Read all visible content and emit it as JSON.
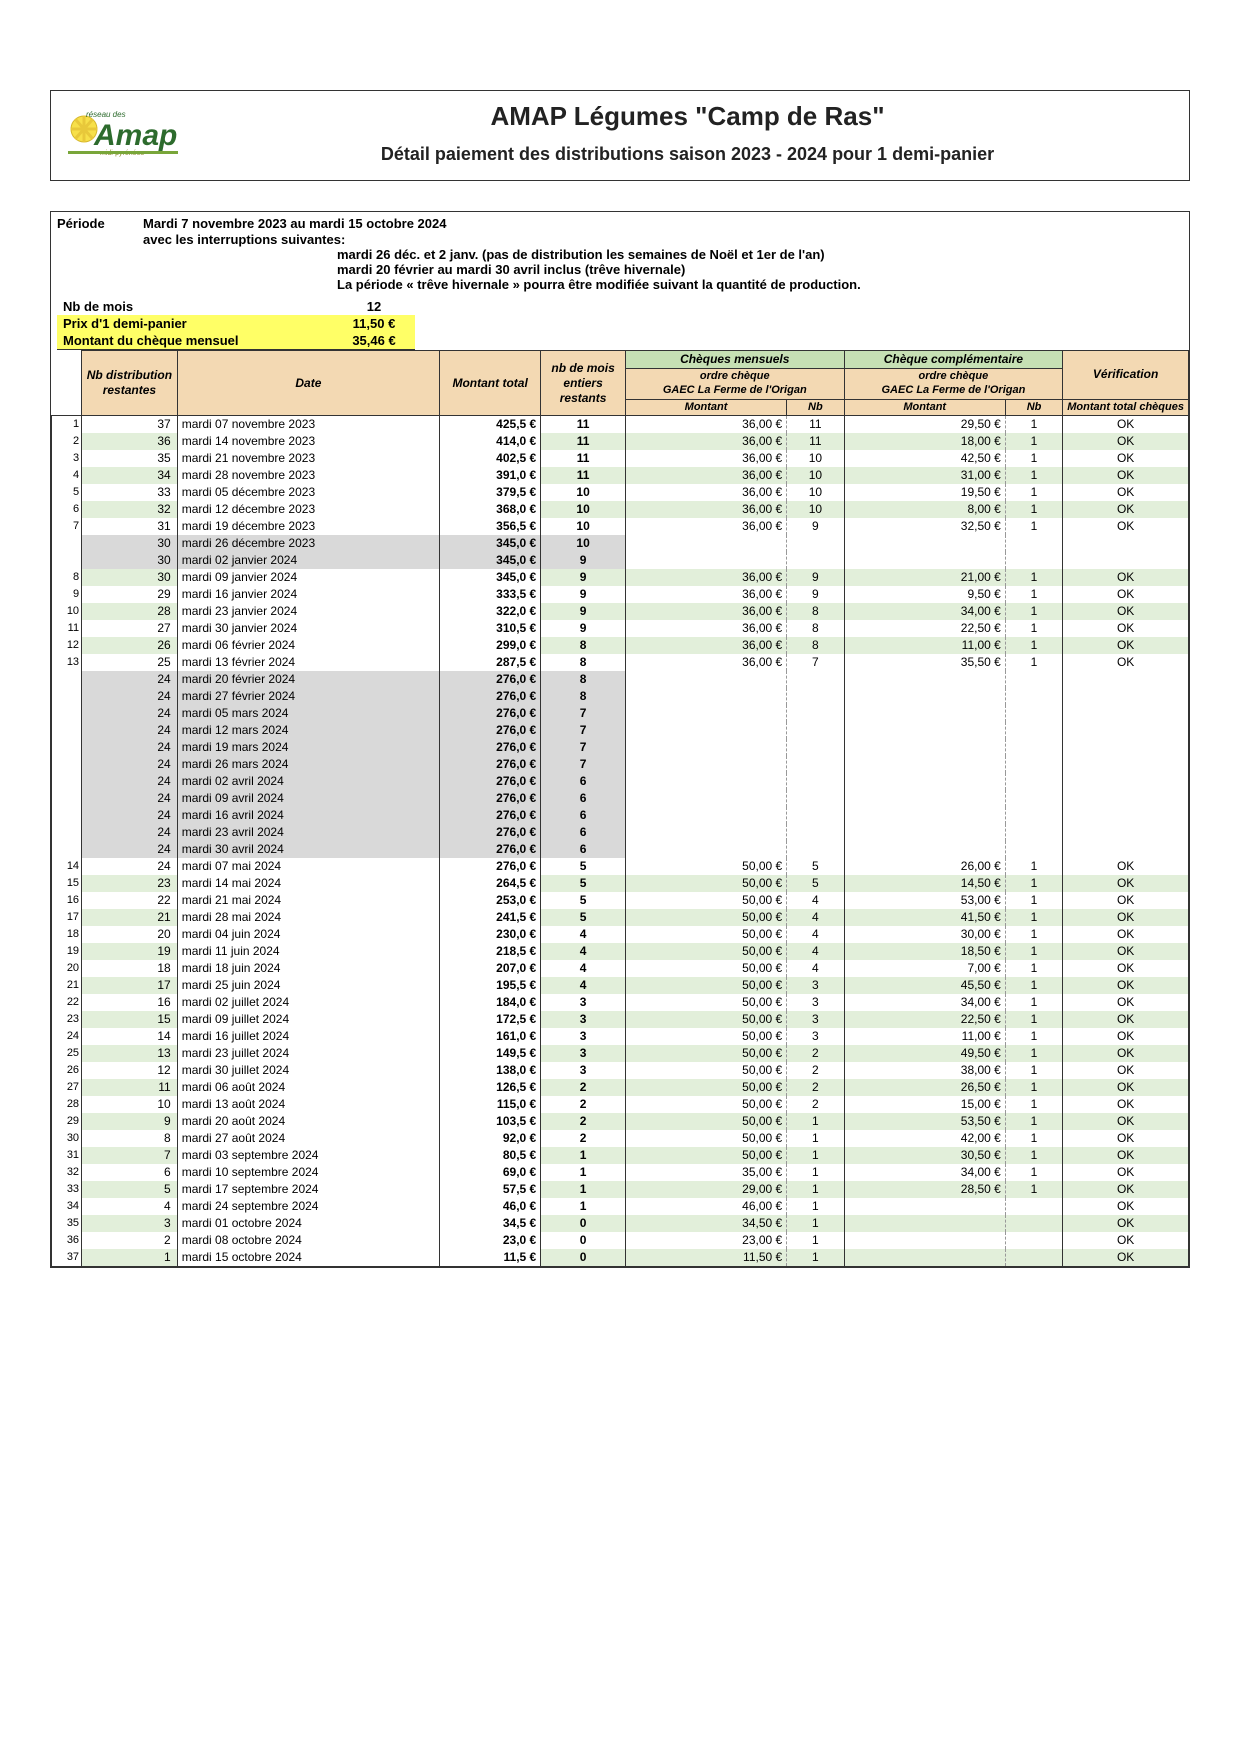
{
  "colors": {
    "header_tan": "#f3d9b3",
    "header_green": "#c6e0b4",
    "row_green": "#e2efda",
    "row_grey": "#d9d9d9",
    "highlight_yellow": "#ffff66",
    "border": "#333333",
    "text": "#222222"
  },
  "typography": {
    "title_fontsize": 26,
    "subtitle_fontsize": 18,
    "body_fontsize": 13,
    "table_fontsize": 12
  },
  "header": {
    "title": "AMAP Légumes \"Camp de Ras\"",
    "subtitle": "Détail paiement des distributions saison 2023 - 2024 pour 1 demi-panier"
  },
  "period": {
    "label": "Période",
    "value": "Mardi 7 novembre 2023 au mardi 15 octobre 2024",
    "interrupt_label": "avec les interruptions suivantes:",
    "interruptions": [
      "mardi 26 déc. et 2 janv. (pas de distribution les semaines de Noël et 1er de l'an)",
      "mardi 20 février au mardi 30 avril inclus (trêve hivernale)",
      "La période « trêve hivernale » pourra être modifiée suivant la quantité de production."
    ]
  },
  "params": {
    "months_label": "Nb de mois",
    "months_value": "12",
    "price_label": "Prix d'1 demi-panier",
    "price_value": "11,50 €",
    "monthly_label": "Montant du chèque mensuel",
    "monthly_value": "35,46 €"
  },
  "table": {
    "headers": {
      "nb_dist": "Nb distribution restantes",
      "date": "Date",
      "montant_total": "Montant total",
      "nb_mois": "nb de mois entiers restants",
      "cheques_mensuels": "Chèques mensuels",
      "cheque_compl": "Chèque complémentaire",
      "verification": "Vérification",
      "ordre": "ordre chèque\nGAEC La Ferme de l'Origan",
      "montant": "Montant",
      "nb": "Nb",
      "montant_total_cheques": "Montant total chèques"
    },
    "rows": [
      {
        "idx": 1,
        "nb": 37,
        "date": "mardi 07 novembre 2023",
        "mt": "425,5 €",
        "nbm": "11",
        "cm_m": "36,00 €",
        "cm_n": "11",
        "cc_m": "29,50 €",
        "cc_n": "1",
        "ver": "OK",
        "green": false
      },
      {
        "idx": 2,
        "nb": 36,
        "date": "mardi 14 novembre 2023",
        "mt": "414,0 €",
        "nbm": "11",
        "cm_m": "36,00 €",
        "cm_n": "11",
        "cc_m": "18,00 €",
        "cc_n": "1",
        "ver": "OK",
        "green": true
      },
      {
        "idx": 3,
        "nb": 35,
        "date": "mardi 21 novembre 2023",
        "mt": "402,5 €",
        "nbm": "11",
        "cm_m": "36,00 €",
        "cm_n": "10",
        "cc_m": "42,50 €",
        "cc_n": "1",
        "ver": "OK",
        "green": false
      },
      {
        "idx": 4,
        "nb": 34,
        "date": "mardi 28 novembre 2023",
        "mt": "391,0 €",
        "nbm": "11",
        "cm_m": "36,00 €",
        "cm_n": "10",
        "cc_m": "31,00 €",
        "cc_n": "1",
        "ver": "OK",
        "green": true
      },
      {
        "idx": 5,
        "nb": 33,
        "date": "mardi 05 décembre 2023",
        "mt": "379,5 €",
        "nbm": "10",
        "cm_m": "36,00 €",
        "cm_n": "10",
        "cc_m": "19,50 €",
        "cc_n": "1",
        "ver": "OK",
        "green": false
      },
      {
        "idx": 6,
        "nb": 32,
        "date": "mardi 12 décembre 2023",
        "mt": "368,0 €",
        "nbm": "10",
        "cm_m": "36,00 €",
        "cm_n": "10",
        "cc_m": "8,00 €",
        "cc_n": "1",
        "ver": "OK",
        "green": true
      },
      {
        "idx": 7,
        "nb": 31,
        "date": "mardi 19 décembre 2023",
        "mt": "356,5 €",
        "nbm": "10",
        "cm_m": "36,00 €",
        "cm_n": "9",
        "cc_m": "32,50 €",
        "cc_n": "1",
        "ver": "OK",
        "green": false
      },
      {
        "idx": "",
        "nb": 30,
        "date": "mardi 26 décembre 2023",
        "mt": "345,0 €",
        "nbm": "10",
        "cm_m": "",
        "cm_n": "",
        "cc_m": "",
        "cc_n": "",
        "ver": "",
        "grey": true
      },
      {
        "idx": "",
        "nb": 30,
        "date": "mardi 02 janvier 2024",
        "mt": "345,0 €",
        "nbm": "9",
        "cm_m": "",
        "cm_n": "",
        "cc_m": "",
        "cc_n": "",
        "ver": "",
        "grey": true
      },
      {
        "idx": 8,
        "nb": 30,
        "date": "mardi 09 janvier 2024",
        "mt": "345,0 €",
        "nbm": "9",
        "cm_m": "36,00 €",
        "cm_n": "9",
        "cc_m": "21,00 €",
        "cc_n": "1",
        "ver": "OK",
        "green": true
      },
      {
        "idx": 9,
        "nb": 29,
        "date": "mardi 16 janvier 2024",
        "mt": "333,5 €",
        "nbm": "9",
        "cm_m": "36,00 €",
        "cm_n": "9",
        "cc_m": "9,50 €",
        "cc_n": "1",
        "ver": "OK",
        "green": false
      },
      {
        "idx": 10,
        "nb": 28,
        "date": "mardi 23 janvier 2024",
        "mt": "322,0 €",
        "nbm": "9",
        "cm_m": "36,00 €",
        "cm_n": "8",
        "cc_m": "34,00 €",
        "cc_n": "1",
        "ver": "OK",
        "green": true
      },
      {
        "idx": 11,
        "nb": 27,
        "date": "mardi 30 janvier 2024",
        "mt": "310,5 €",
        "nbm": "9",
        "cm_m": "36,00 €",
        "cm_n": "8",
        "cc_m": "22,50 €",
        "cc_n": "1",
        "ver": "OK",
        "green": false
      },
      {
        "idx": 12,
        "nb": 26,
        "date": "mardi 06 février 2024",
        "mt": "299,0 €",
        "nbm": "8",
        "cm_m": "36,00 €",
        "cm_n": "8",
        "cc_m": "11,00 €",
        "cc_n": "1",
        "ver": "OK",
        "green": true
      },
      {
        "idx": 13,
        "nb": 25,
        "date": "mardi 13 février 2024",
        "mt": "287,5 €",
        "nbm": "8",
        "cm_m": "36,00 €",
        "cm_n": "7",
        "cc_m": "35,50 €",
        "cc_n": "1",
        "ver": "OK",
        "green": false
      },
      {
        "idx": "",
        "nb": 24,
        "date": "mardi 20 février 2024",
        "mt": "276,0 €",
        "nbm": "8",
        "cm_m": "",
        "cm_n": "",
        "cc_m": "",
        "cc_n": "",
        "ver": "",
        "grey": true
      },
      {
        "idx": "",
        "nb": 24,
        "date": "mardi 27 février 2024",
        "mt": "276,0 €",
        "nbm": "8",
        "cm_m": "",
        "cm_n": "",
        "cc_m": "",
        "cc_n": "",
        "ver": "",
        "grey": true
      },
      {
        "idx": "",
        "nb": 24,
        "date": "mardi 05 mars 2024",
        "mt": "276,0 €",
        "nbm": "7",
        "cm_m": "",
        "cm_n": "",
        "cc_m": "",
        "cc_n": "",
        "ver": "",
        "grey": true
      },
      {
        "idx": "",
        "nb": 24,
        "date": "mardi 12 mars 2024",
        "mt": "276,0 €",
        "nbm": "7",
        "cm_m": "",
        "cm_n": "",
        "cc_m": "",
        "cc_n": "",
        "ver": "",
        "grey": true
      },
      {
        "idx": "",
        "nb": 24,
        "date": "mardi 19 mars 2024",
        "mt": "276,0 €",
        "nbm": "7",
        "cm_m": "",
        "cm_n": "",
        "cc_m": "",
        "cc_n": "",
        "ver": "",
        "grey": true
      },
      {
        "idx": "",
        "nb": 24,
        "date": "mardi 26 mars 2024",
        "mt": "276,0 €",
        "nbm": "7",
        "cm_m": "",
        "cm_n": "",
        "cc_m": "",
        "cc_n": "",
        "ver": "",
        "grey": true
      },
      {
        "idx": "",
        "nb": 24,
        "date": "mardi 02 avril 2024",
        "mt": "276,0 €",
        "nbm": "6",
        "cm_m": "",
        "cm_n": "",
        "cc_m": "",
        "cc_n": "",
        "ver": "",
        "grey": true
      },
      {
        "idx": "",
        "nb": 24,
        "date": "mardi 09 avril 2024",
        "mt": "276,0 €",
        "nbm": "6",
        "cm_m": "",
        "cm_n": "",
        "cc_m": "",
        "cc_n": "",
        "ver": "",
        "grey": true
      },
      {
        "idx": "",
        "nb": 24,
        "date": "mardi 16 avril 2024",
        "mt": "276,0 €",
        "nbm": "6",
        "cm_m": "",
        "cm_n": "",
        "cc_m": "",
        "cc_n": "",
        "ver": "",
        "grey": true
      },
      {
        "idx": "",
        "nb": 24,
        "date": "mardi 23 avril 2024",
        "mt": "276,0 €",
        "nbm": "6",
        "cm_m": "",
        "cm_n": "",
        "cc_m": "",
        "cc_n": "",
        "ver": "",
        "grey": true
      },
      {
        "idx": "",
        "nb": 24,
        "date": "mardi 30 avril 2024",
        "mt": "276,0 €",
        "nbm": "6",
        "cm_m": "",
        "cm_n": "",
        "cc_m": "",
        "cc_n": "",
        "ver": "",
        "grey": true
      },
      {
        "idx": 14,
        "nb": 24,
        "date": "mardi 07 mai 2024",
        "mt": "276,0 €",
        "nbm": "5",
        "cm_m": "50,00 €",
        "cm_n": "5",
        "cc_m": "26,00 €",
        "cc_n": "1",
        "ver": "OK",
        "green": false
      },
      {
        "idx": 15,
        "nb": 23,
        "date": "mardi 14 mai 2024",
        "mt": "264,5 €",
        "nbm": "5",
        "cm_m": "50,00 €",
        "cm_n": "5",
        "cc_m": "14,50 €",
        "cc_n": "1",
        "ver": "OK",
        "green": true
      },
      {
        "idx": 16,
        "nb": 22,
        "date": "mardi 21 mai 2024",
        "mt": "253,0 €",
        "nbm": "5",
        "cm_m": "50,00 €",
        "cm_n": "4",
        "cc_m": "53,00 €",
        "cc_n": "1",
        "ver": "OK",
        "green": false
      },
      {
        "idx": 17,
        "nb": 21,
        "date": "mardi 28 mai 2024",
        "mt": "241,5 €",
        "nbm": "5",
        "cm_m": "50,00 €",
        "cm_n": "4",
        "cc_m": "41,50 €",
        "cc_n": "1",
        "ver": "OK",
        "green": true
      },
      {
        "idx": 18,
        "nb": 20,
        "date": "mardi 04 juin 2024",
        "mt": "230,0 €",
        "nbm": "4",
        "cm_m": "50,00 €",
        "cm_n": "4",
        "cc_m": "30,00 €",
        "cc_n": "1",
        "ver": "OK",
        "green": false
      },
      {
        "idx": 19,
        "nb": 19,
        "date": "mardi 11 juin 2024",
        "mt": "218,5 €",
        "nbm": "4",
        "cm_m": "50,00 €",
        "cm_n": "4",
        "cc_m": "18,50 €",
        "cc_n": "1",
        "ver": "OK",
        "green": true
      },
      {
        "idx": 20,
        "nb": 18,
        "date": "mardi 18 juin 2024",
        "mt": "207,0 €",
        "nbm": "4",
        "cm_m": "50,00 €",
        "cm_n": "4",
        "cc_m": "7,00 €",
        "cc_n": "1",
        "ver": "OK",
        "green": false
      },
      {
        "idx": 21,
        "nb": 17,
        "date": "mardi 25 juin 2024",
        "mt": "195,5 €",
        "nbm": "4",
        "cm_m": "50,00 €",
        "cm_n": "3",
        "cc_m": "45,50 €",
        "cc_n": "1",
        "ver": "OK",
        "green": true
      },
      {
        "idx": 22,
        "nb": 16,
        "date": "mardi 02 juillet 2024",
        "mt": "184,0 €",
        "nbm": "3",
        "cm_m": "50,00 €",
        "cm_n": "3",
        "cc_m": "34,00 €",
        "cc_n": "1",
        "ver": "OK",
        "green": false
      },
      {
        "idx": 23,
        "nb": 15,
        "date": "mardi 09 juillet 2024",
        "mt": "172,5 €",
        "nbm": "3",
        "cm_m": "50,00 €",
        "cm_n": "3",
        "cc_m": "22,50 €",
        "cc_n": "1",
        "ver": "OK",
        "green": true
      },
      {
        "idx": 24,
        "nb": 14,
        "date": "mardi 16 juillet 2024",
        "mt": "161,0 €",
        "nbm": "3",
        "cm_m": "50,00 €",
        "cm_n": "3",
        "cc_m": "11,00 €",
        "cc_n": "1",
        "ver": "OK",
        "green": false
      },
      {
        "idx": 25,
        "nb": 13,
        "date": "mardi 23 juillet 2024",
        "mt": "149,5 €",
        "nbm": "3",
        "cm_m": "50,00 €",
        "cm_n": "2",
        "cc_m": "49,50 €",
        "cc_n": "1",
        "ver": "OK",
        "green": true
      },
      {
        "idx": 26,
        "nb": 12,
        "date": "mardi 30 juillet 2024",
        "mt": "138,0 €",
        "nbm": "3",
        "cm_m": "50,00 €",
        "cm_n": "2",
        "cc_m": "38,00 €",
        "cc_n": "1",
        "ver": "OK",
        "green": false
      },
      {
        "idx": 27,
        "nb": 11,
        "date": "mardi 06 août 2024",
        "mt": "126,5 €",
        "nbm": "2",
        "cm_m": "50,00 €",
        "cm_n": "2",
        "cc_m": "26,50 €",
        "cc_n": "1",
        "ver": "OK",
        "green": true
      },
      {
        "idx": 28,
        "nb": 10,
        "date": "mardi 13 août 2024",
        "mt": "115,0 €",
        "nbm": "2",
        "cm_m": "50,00 €",
        "cm_n": "2",
        "cc_m": "15,00 €",
        "cc_n": "1",
        "ver": "OK",
        "green": false
      },
      {
        "idx": 29,
        "nb": 9,
        "date": "mardi 20 août 2024",
        "mt": "103,5 €",
        "nbm": "2",
        "cm_m": "50,00 €",
        "cm_n": "1",
        "cc_m": "53,50 €",
        "cc_n": "1",
        "ver": "OK",
        "green": true
      },
      {
        "idx": 30,
        "nb": 8,
        "date": "mardi 27 août 2024",
        "mt": "92,0 €",
        "nbm": "2",
        "cm_m": "50,00 €",
        "cm_n": "1",
        "cc_m": "42,00 €",
        "cc_n": "1",
        "ver": "OK",
        "green": false
      },
      {
        "idx": 31,
        "nb": 7,
        "date": "mardi 03 septembre 2024",
        "mt": "80,5 €",
        "nbm": "1",
        "cm_m": "50,00 €",
        "cm_n": "1",
        "cc_m": "30,50 €",
        "cc_n": "1",
        "ver": "OK",
        "green": true
      },
      {
        "idx": 32,
        "nb": 6,
        "date": "mardi 10 septembre 2024",
        "mt": "69,0 €",
        "nbm": "1",
        "cm_m": "35,00 €",
        "cm_n": "1",
        "cc_m": "34,00 €",
        "cc_n": "1",
        "ver": "OK",
        "green": false
      },
      {
        "idx": 33,
        "nb": 5,
        "date": "mardi 17 septembre 2024",
        "mt": "57,5 €",
        "nbm": "1",
        "cm_m": "29,00 €",
        "cm_n": "1",
        "cc_m": "28,50 €",
        "cc_n": "1",
        "ver": "OK",
        "green": true
      },
      {
        "idx": 34,
        "nb": 4,
        "date": "mardi 24 septembre 2024",
        "mt": "46,0 €",
        "nbm": "1",
        "cm_m": "46,00 €",
        "cm_n": "1",
        "cc_m": "",
        "cc_n": "",
        "ver": "OK",
        "green": false
      },
      {
        "idx": 35,
        "nb": 3,
        "date": "mardi 01 octobre 2024",
        "mt": "34,5 €",
        "nbm": "0",
        "cm_m": "34,50 €",
        "cm_n": "1",
        "cc_m": "",
        "cc_n": "",
        "ver": "OK",
        "green": true
      },
      {
        "idx": 36,
        "nb": 2,
        "date": "mardi 08 octobre 2024",
        "mt": "23,0 €",
        "nbm": "0",
        "cm_m": "23,00 €",
        "cm_n": "1",
        "cc_m": "",
        "cc_n": "",
        "ver": "OK",
        "green": false
      },
      {
        "idx": 37,
        "nb": 1,
        "date": "mardi 15 octobre 2024",
        "mt": "11,5 €",
        "nbm": "0",
        "cm_m": "11,50 €",
        "cm_n": "1",
        "cc_m": "",
        "cc_n": "",
        "ver": "OK",
        "green": true
      }
    ]
  }
}
